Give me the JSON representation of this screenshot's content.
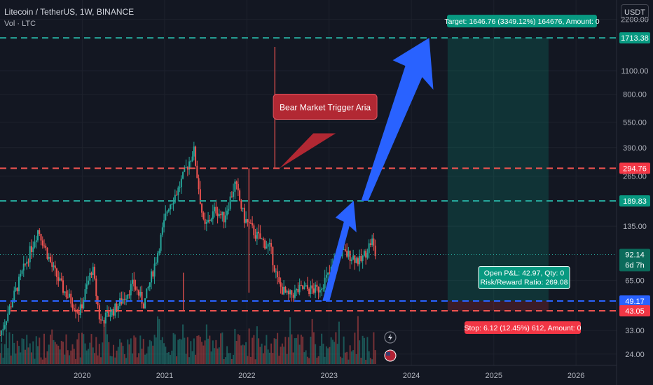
{
  "header": {
    "title": "Litecoin / TetherUS, 1W, BINANCE",
    "indicator": "Vol · LTC",
    "currency_button": "USDT"
  },
  "colors": {
    "background": "#131722",
    "candle_up": "#26a69a",
    "candle_down": "#ef5350",
    "red_level": "#ef5350",
    "green_level": "#26a69a",
    "blue_level": "#2962ff",
    "arrow": "#2962ff",
    "callout_bg": "#b22833",
    "target_green": "#089981",
    "stop_red": "#f23645"
  },
  "annotations": {
    "callout": "Bear Market Trigger Aria",
    "target": "Target: 1646.76 (3349.12%) 164676, Amount: 0",
    "stop": "Stop: 6.12 (12.45%) 612, Amount: 0",
    "pnl_line1": "Open P&L: 42.97, Qty: 0",
    "pnl_line2": "Risk/Reward Ratio: 269.08",
    "countdown": "6d 7h"
  },
  "chart_data": {
    "type": "candlestick",
    "symbol": "LTCUSDT",
    "interval": "1W",
    "exchange": "BINANCE",
    "y_scale": "log",
    "y_range": [
      21,
      2600
    ],
    "x_range": [
      "2019-01-01",
      "2026-06-30"
    ],
    "x_tick_labels": [
      "2020",
      "2021",
      "2022",
      "2023",
      "2024",
      "2025",
      "2026"
    ],
    "y_tick_labels": [
      "2200.00",
      "1100.00",
      "800.00",
      "550.00",
      "390.00",
      "265.00",
      "135.00",
      "65.00",
      "33.00",
      "24.00"
    ],
    "price_labels": [
      {
        "value": 1713.38,
        "color": "green"
      },
      {
        "value": 294.76,
        "color": "red"
      },
      {
        "value": 189.83,
        "color": "green"
      },
      {
        "value": 92.14,
        "color": "green"
      },
      {
        "value": 49.17,
        "color": "blue"
      },
      {
        "value": 43.05,
        "color": "red"
      }
    ],
    "horizontal_levels": [
      {
        "value": 1713.38,
        "style": "dashed",
        "color": "green"
      },
      {
        "value": 294.76,
        "style": "dashed",
        "color": "red"
      },
      {
        "value": 189.83,
        "style": "dashed",
        "color": "green"
      },
      {
        "value": 92.14,
        "style": "dotted",
        "color": "green"
      },
      {
        "value": 49.17,
        "style": "dashed",
        "color": "blue"
      },
      {
        "value": 43.05,
        "style": "dashed",
        "color": "red"
      }
    ],
    "price_path": [
      [
        "2019-01-01",
        31
      ],
      [
        "2019-03-15",
        58
      ],
      [
        "2019-06-20",
        130
      ],
      [
        "2019-08-20",
        78
      ],
      [
        "2019-10-10",
        57
      ],
      [
        "2019-12-20",
        42
      ],
      [
        "2020-02-15",
        78
      ],
      [
        "2020-03-20",
        37
      ],
      [
        "2020-06-01",
        45
      ],
      [
        "2020-08-15",
        62
      ],
      [
        "2020-10-01",
        47
      ],
      [
        "2020-11-25",
        88
      ],
      [
        "2021-01-15",
        175
      ],
      [
        "2021-03-01",
        220
      ],
      [
        "2021-05-10",
        380
      ],
      [
        "2021-06-25",
        130
      ],
      [
        "2021-08-15",
        170
      ],
      [
        "2021-09-20",
        150
      ],
      [
        "2021-11-10",
        240
      ],
      [
        "2021-12-20",
        150
      ],
      [
        "2022-02-10",
        120
      ],
      [
        "2022-04-15",
        100
      ],
      [
        "2022-05-20",
        62
      ],
      [
        "2022-07-01",
        52
      ],
      [
        "2022-09-01",
        58
      ],
      [
        "2022-11-10",
        57
      ],
      [
        "2022-12-31",
        70
      ],
      [
        "2023-02-15",
        95
      ],
      [
        "2023-04-15",
        90
      ],
      [
        "2023-05-20",
        83
      ],
      [
        "2023-07-10",
        112
      ],
      [
        "2023-07-25",
        92
      ]
    ],
    "current_price": 92.14
  }
}
